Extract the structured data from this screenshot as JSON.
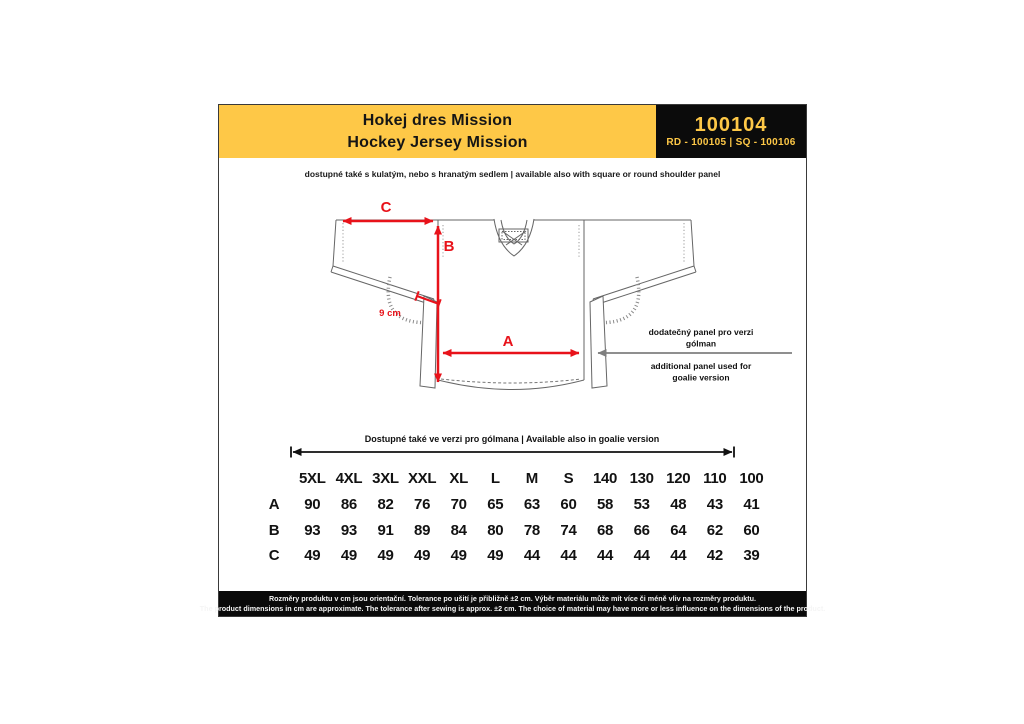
{
  "header": {
    "title_line1": "Hokej dres Mission",
    "title_line2": "Hockey Jersey Mission",
    "product_code": "100104",
    "product_variants": "RD - 100105 | SQ - 100106"
  },
  "subtitle": "dostupné také s kulatým, nebo s hranatým sedlem | available also with square or round shoulder panel",
  "diagram": {
    "dim_a_label": "A",
    "dim_b_label": "B",
    "dim_c_label": "C",
    "cuff_measure_label": "9 cm",
    "goalie_panel_note_cz_line1": "dodatečný panel pro verzi",
    "goalie_panel_note_cz_line2": "gólman",
    "goalie_panel_note_en_line1": "additional panel used for",
    "goalie_panel_note_en_line2": "goalie version"
  },
  "goalie_caption": "Dostupné také ve verzi pro gólmana | Available also in goalie version",
  "size_table": {
    "sizes": [
      "5XL",
      "4XL",
      "3XL",
      "XXL",
      "XL",
      "L",
      "M",
      "S",
      "140",
      "130",
      "120",
      "110",
      "100"
    ],
    "rows": [
      {
        "label": "A",
        "values": [
          90,
          86,
          82,
          76,
          70,
          65,
          63,
          60,
          58,
          53,
          48,
          43,
          41
        ]
      },
      {
        "label": "B",
        "values": [
          93,
          93,
          91,
          89,
          84,
          80,
          78,
          74,
          68,
          66,
          64,
          62,
          60
        ]
      },
      {
        "label": "C",
        "values": [
          49,
          49,
          49,
          49,
          49,
          49,
          44,
          44,
          44,
          44,
          44,
          42,
          39
        ]
      }
    ]
  },
  "footer": {
    "line_cz": "Rozměry produktu v cm jsou orientační. Tolerance po ušití je přibližně ±2 cm. Výběr materiálu může mít více či méně vliv na rozměry produktu.",
    "line_en": "The product dimensions in cm are approximate. The tolerance after sewing is approx. ±2 cm. The choice of material may have more or less influence on the dimensions of the product."
  },
  "colors": {
    "accent_gold": "#FEC847",
    "dimension_red": "#E8121A",
    "band_black": "#0B0B0B"
  }
}
